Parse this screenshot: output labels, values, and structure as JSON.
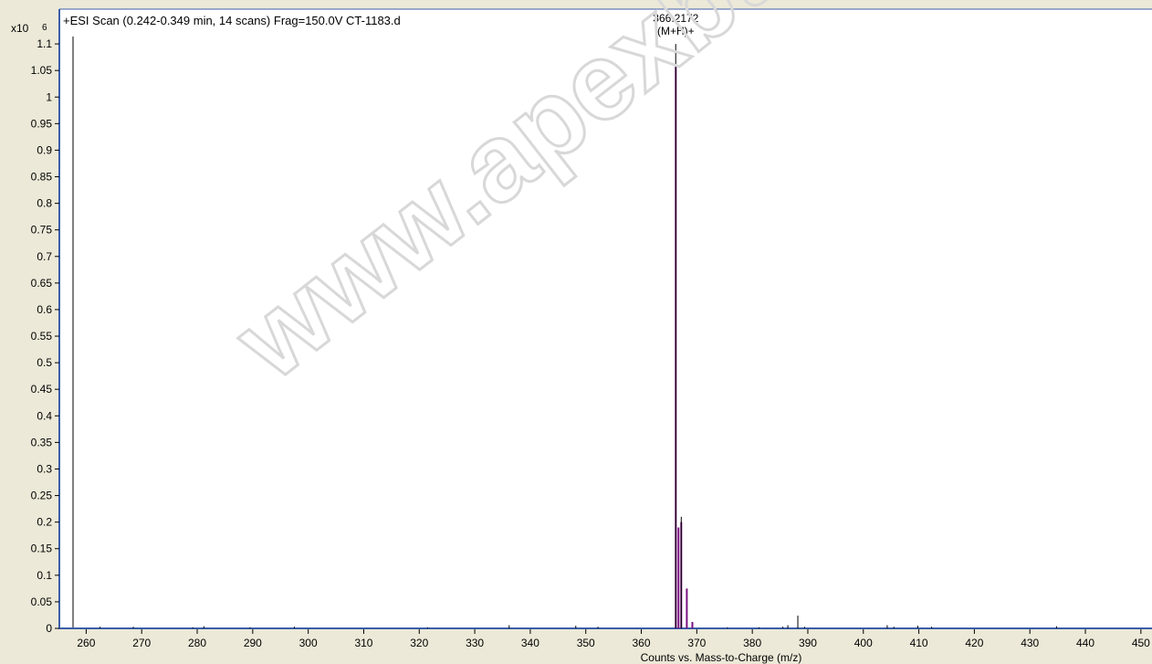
{
  "chart_data": {
    "type": "bar",
    "title": "+ESI Scan (0.242-0.349 min, 14 scans) Frag=150.0V CT-1183.d",
    "xlabel": "Counts vs. Mass-to-Charge (m/z)",
    "y_multiplier_label": "x10",
    "y_exponent_label": "6",
    "xlim": [
      255,
      452
    ],
    "ylim": [
      0,
      1.15
    ],
    "x_ticks": [
      260,
      270,
      280,
      290,
      300,
      310,
      320,
      330,
      340,
      350,
      360,
      370,
      380,
      390,
      400,
      410,
      420,
      430,
      440,
      450
    ],
    "y_ticks": [
      0,
      0.05,
      0.1,
      0.15,
      0.2,
      0.25,
      0.3,
      0.35,
      0.4,
      0.45,
      0.5,
      0.55,
      0.6,
      0.65,
      0.7,
      0.75,
      0.8,
      0.85,
      0.9,
      0.95,
      1,
      1.05,
      1.1
    ],
    "y_tick_labels": [
      "0",
      "0.05",
      "0.1",
      "0.15",
      "0.2",
      "0.25",
      "0.3",
      "0.35",
      "0.4",
      "0.45",
      "0.5",
      "0.55",
      "0.6",
      "0.65",
      "0.7",
      "0.75",
      "0.8",
      "0.85",
      "0.9",
      "0.95",
      "1",
      "1.05",
      "1.1"
    ],
    "grid": false,
    "series": [
      {
        "color": "#7b1080",
        "x": [
          366.2172,
          366.7,
          367.2,
          368.2,
          369.2
        ],
        "values": [
          1.06,
          0.19,
          0.2,
          0.075,
          0.012
        ]
      },
      {
        "color": "#000000",
        "x": [
          366.2,
          367.2,
          388.2,
          262.5,
          268.5,
          279.2,
          281.2,
          289.5,
          297.5,
          321.5,
          336.2,
          348.2,
          352.2,
          375.5,
          381.2,
          385.5,
          386.4,
          389.4,
          404.3,
          405.5,
          409.8,
          412.3,
          434.8
        ],
        "values": [
          1.1,
          0.21,
          0.024,
          0.003,
          0.003,
          0.002,
          0.004,
          0.002,
          0.003,
          0.002,
          0.006,
          0.005,
          0.003,
          0.002,
          0.002,
          0.003,
          0.006,
          0.003,
          0.006,
          0.003,
          0.005,
          0.003,
          0.004
        ]
      }
    ],
    "annotations": [
      {
        "x": 366.2172,
        "y": 1.1,
        "lines": [
          "366.2172",
          "(M+H)+"
        ]
      }
    ]
  },
  "watermark": {
    "text": "www.apexbt.com"
  }
}
